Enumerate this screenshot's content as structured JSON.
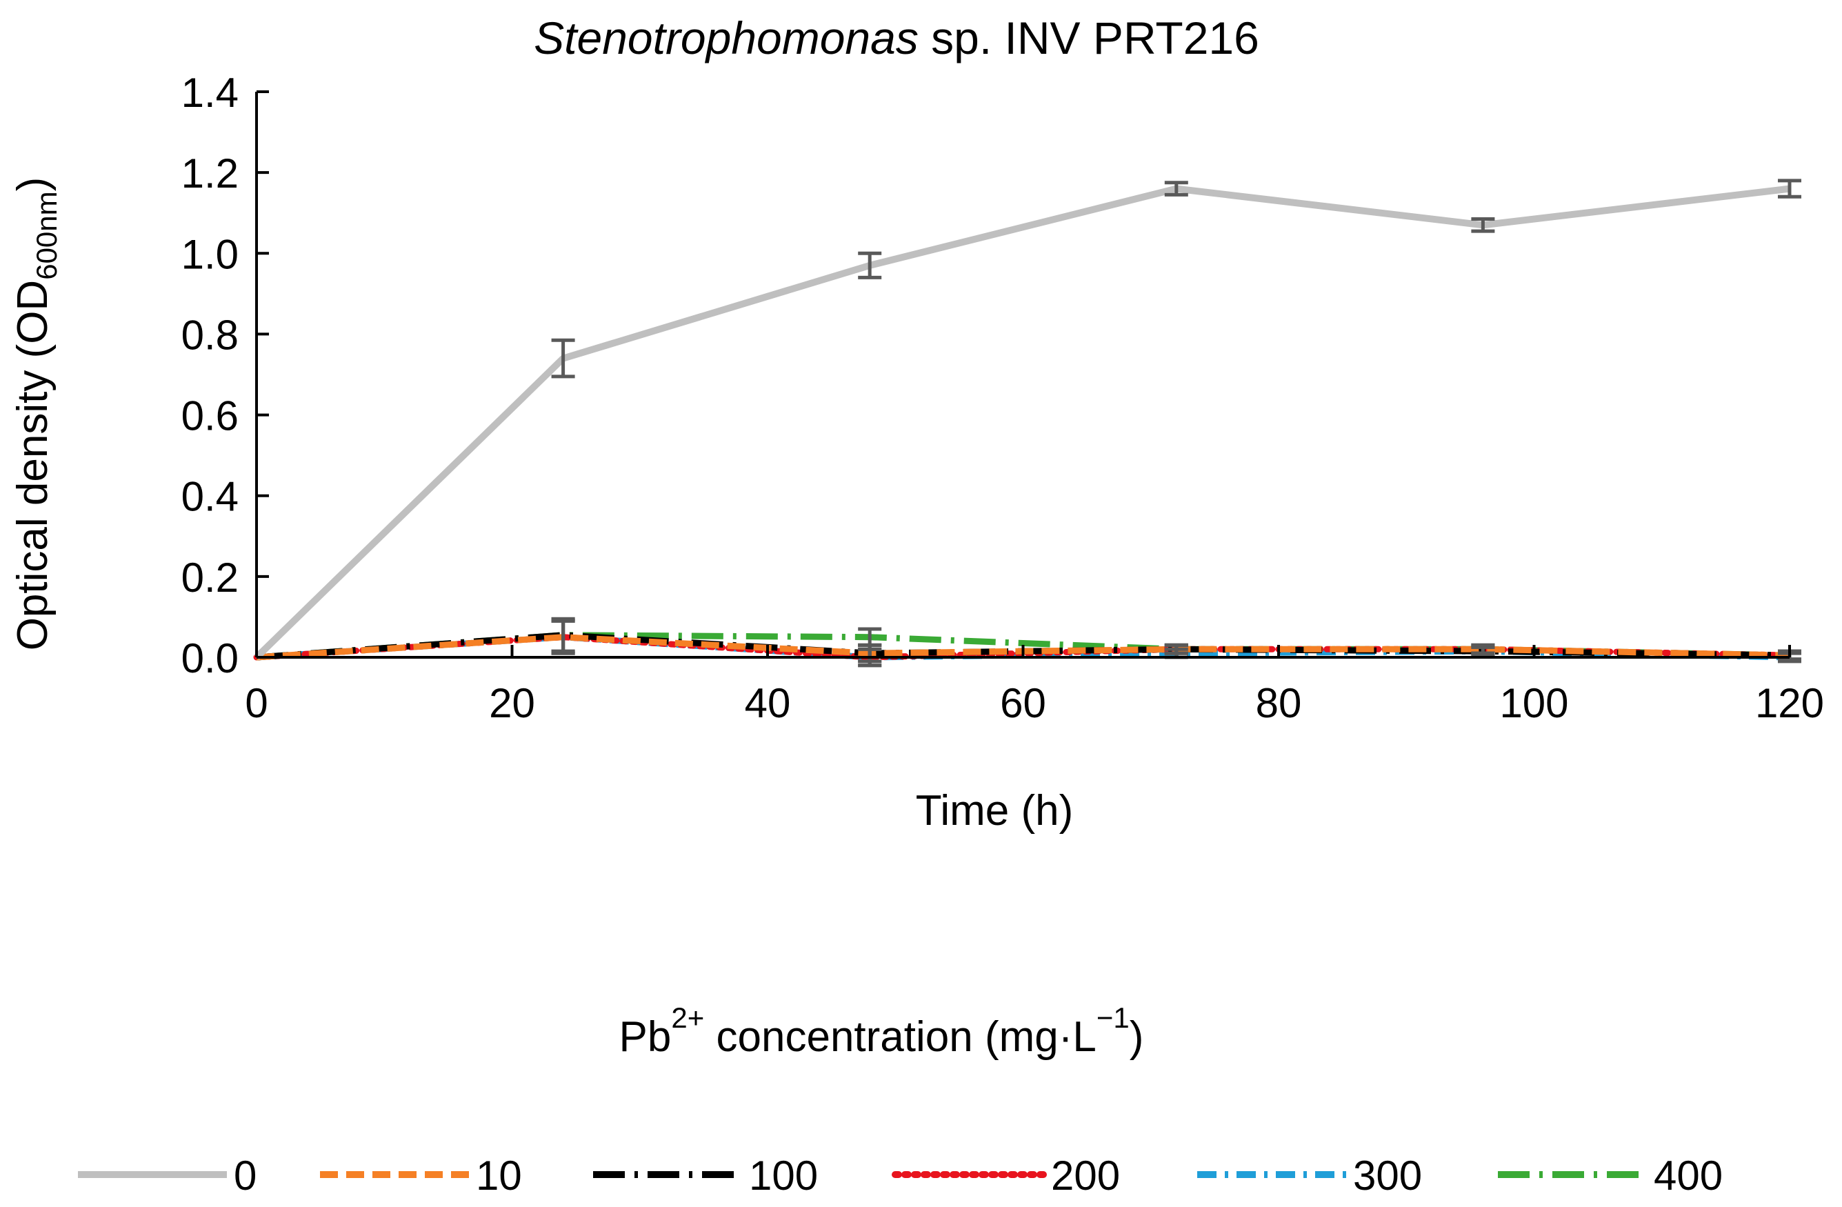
{
  "chart_data": {
    "type": "line",
    "title": {
      "italic": "Stenotrophomonas",
      "rest": " sp. INV PRT216"
    },
    "xlabel": "Time (h)",
    "ylabel": {
      "main": "Optical density (OD",
      "sub": "600nm",
      "close": ")"
    },
    "xlim": [
      0,
      120
    ],
    "ylim": [
      0,
      1.4
    ],
    "xticks": [
      0,
      20,
      40,
      60,
      80,
      100,
      120
    ],
    "xtick_labels": [
      "0",
      "20",
      "40",
      "60",
      "80",
      "100",
      "120"
    ],
    "yticks": [
      0,
      0.2,
      0.4,
      0.6,
      0.8,
      1.0,
      1.2,
      1.4
    ],
    "ytick_labels": [
      "0.0",
      "0.2",
      "0.4",
      "0.6",
      "0.8",
      "1.0",
      "1.2",
      "1.4"
    ],
    "grid": false,
    "legend_title": {
      "base": "Pb",
      "sup": "2+",
      "mid": " concentration (mg·L",
      "sup2": "−1",
      "close": ")"
    },
    "legend_position": "bottom",
    "x": [
      0,
      24,
      48,
      72,
      96,
      120
    ],
    "series": [
      {
        "name": "0",
        "color": "#BFBFBF",
        "dash": "solid",
        "values": [
          0.0,
          0.74,
          0.97,
          1.16,
          1.07,
          1.16
        ],
        "errors": [
          0.0,
          0.045,
          0.03,
          0.015,
          0.015,
          0.02
        ]
      },
      {
        "name": "10",
        "color": "#F58025",
        "dash": "dashed",
        "values": [
          0.0,
          0.05,
          0.01,
          0.02,
          0.02,
          0.005
        ],
        "errors": [
          0.0,
          0.04,
          0.02,
          0.01,
          0.01,
          0.01
        ]
      },
      {
        "name": "100",
        "color": "#000000",
        "dash": "long-dash-dot",
        "values": [
          0.0,
          0.055,
          0.01,
          0.02,
          0.015,
          0.005
        ],
        "errors": [
          0.0,
          0.04,
          0.02,
          0.01,
          0.01,
          0.01
        ]
      },
      {
        "name": "200",
        "color": "#E8141E",
        "dash": "dotted",
        "values": [
          0.0,
          0.05,
          0.0,
          0.02,
          0.02,
          0.005
        ],
        "errors": [
          0.0,
          0.04,
          0.02,
          0.01,
          0.01,
          0.01
        ]
      },
      {
        "name": "300",
        "color": "#1F9ED8",
        "dash": "dash-dot",
        "values": [
          0.0,
          0.05,
          0.0,
          0.01,
          0.015,
          0.0
        ],
        "errors": [
          0.0,
          0.04,
          0.02,
          0.01,
          0.01,
          0.01
        ]
      },
      {
        "name": "400",
        "color": "#3AAA35",
        "dash": "long-dash-dot",
        "values": [
          0.0,
          0.055,
          0.05,
          0.02,
          0.02,
          0.005
        ],
        "errors": [
          0.0,
          0.04,
          0.02,
          0.01,
          0.01,
          0.01
        ]
      }
    ]
  }
}
